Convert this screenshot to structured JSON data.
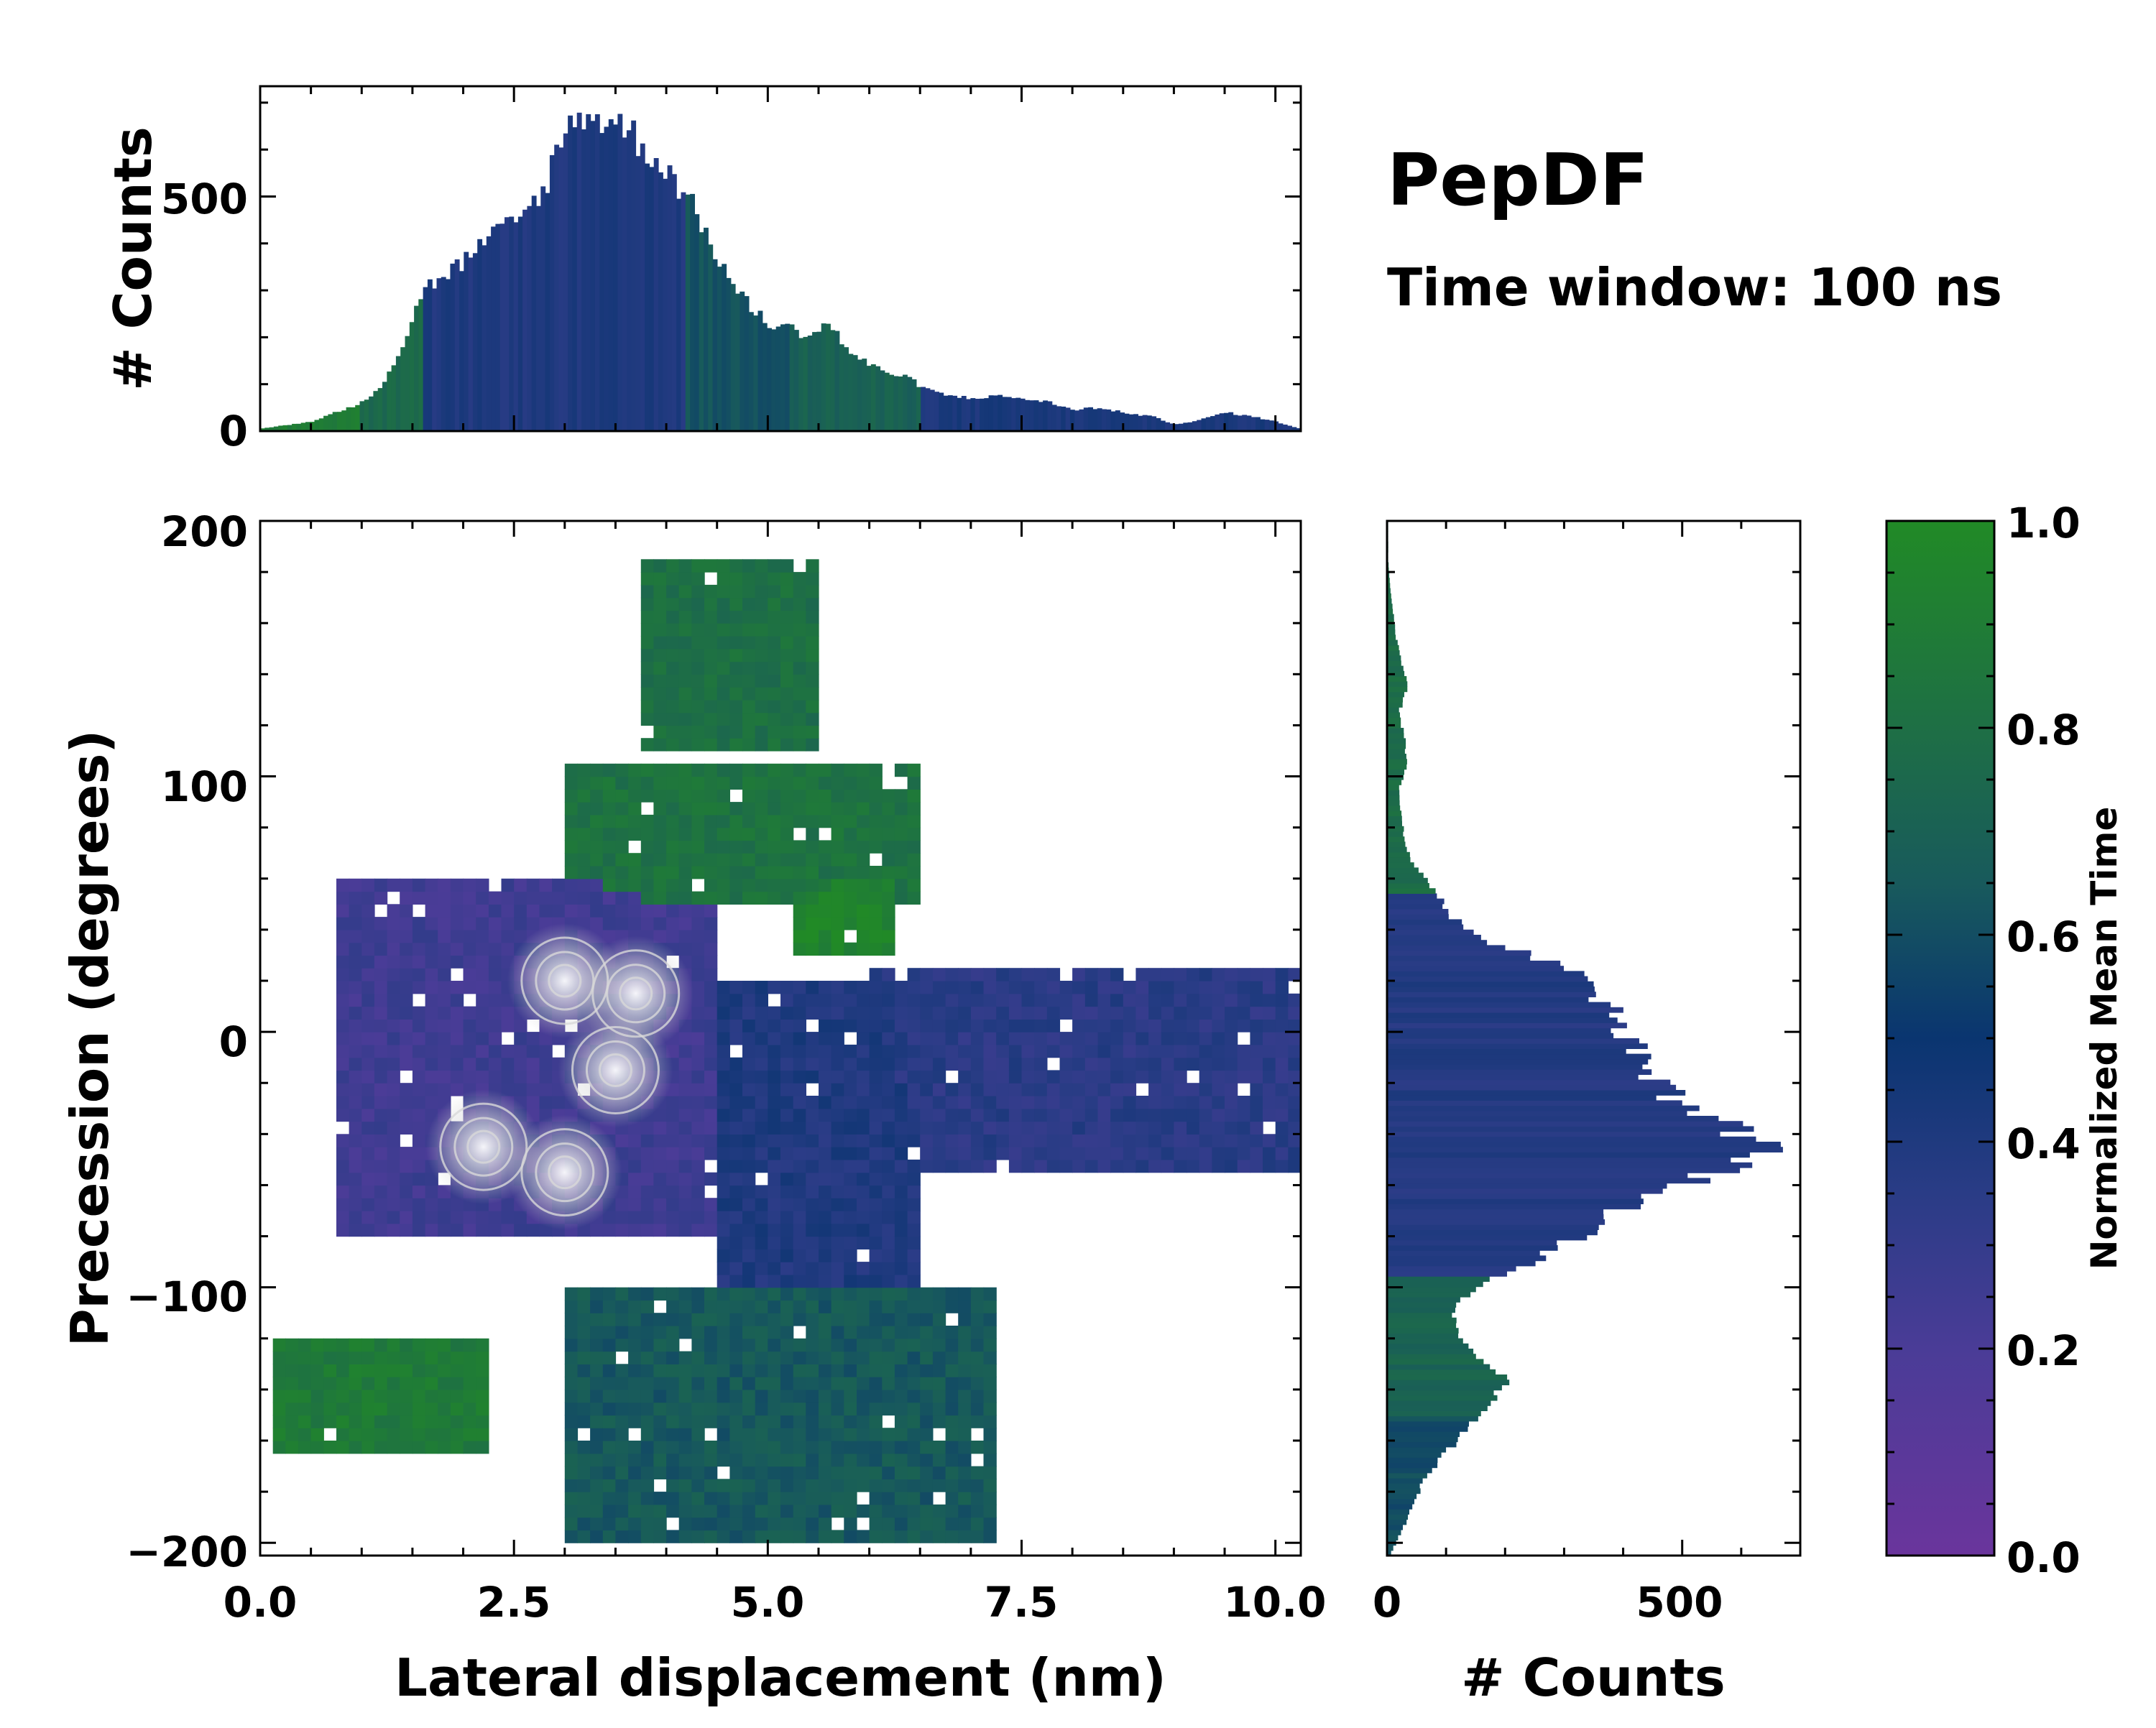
{
  "chart_data": {
    "type": "heatmap",
    "title": "PepDF",
    "subtitle": "Time window: 100 ns",
    "main": {
      "xlabel": "Lateral displacement (nm)",
      "ylabel": "Precession (degrees)",
      "xlim": [
        0.0,
        10.25
      ],
      "ylim": [
        -205,
        200
      ],
      "xticks": [
        "0.0",
        "2.5",
        "5.0",
        "7.5",
        "10.0"
      ],
      "yticks": [
        "200",
        "100",
        "0",
        "−100",
        "−200"
      ],
      "color_metric": "Normalized Mean Time",
      "regions": [
        {
          "name": "upper lobe",
          "x": [
            3.8,
            5.5
          ],
          "y": [
            110,
            185
          ],
          "mean_time": 0.8
        },
        {
          "name": "upper-middle green",
          "x": [
            3.0,
            6.5
          ],
          "y": [
            50,
            105
          ],
          "mean_time": 0.82
        },
        {
          "name": "right green patch",
          "x": [
            5.3,
            6.3
          ],
          "y": [
            30,
            60
          ],
          "mean_time": 0.95
        },
        {
          "name": "left purple core",
          "x": [
            0.8,
            4.5
          ],
          "y": [
            -80,
            60
          ],
          "mean_time": 0.25
        },
        {
          "name": "central blue",
          "x": [
            4.5,
            6.5
          ],
          "y": [
            -100,
            20
          ],
          "mean_time": 0.4
        },
        {
          "name": "right arm",
          "x": [
            6.0,
            10.2
          ],
          "y": [
            -55,
            25
          ],
          "mean_time": 0.35
        },
        {
          "name": "lower-left green",
          "x": [
            0.1,
            2.2
          ],
          "y": [
            -165,
            -120
          ],
          "mean_time": 0.88
        },
        {
          "name": "lower lobe",
          "x": [
            3.0,
            7.2
          ],
          "y": [
            -200,
            -100
          ],
          "mean_time": 0.65
        }
      ],
      "density_peaks": [
        {
          "x": 3.0,
          "y": 20
        },
        {
          "x": 3.7,
          "y": 15
        },
        {
          "x": 3.5,
          "y": -15
        },
        {
          "x": 2.2,
          "y": -45
        },
        {
          "x": 3.0,
          "y": -55
        }
      ]
    },
    "top_histogram": {
      "ylabel": "# Counts",
      "ylim": [
        0,
        735
      ],
      "yticks": [
        "0",
        "500"
      ],
      "x_from": 0.0,
      "x_to": 10.25,
      "envelope_x": [
        0.0,
        0.5,
        1.0,
        1.2,
        1.4,
        1.6,
        1.8,
        2.0,
        2.2,
        2.4,
        2.6,
        2.8,
        3.0,
        3.2,
        3.4,
        3.6,
        3.8,
        4.0,
        4.2,
        4.4,
        4.6,
        4.8,
        5.0,
        5.2,
        5.4,
        5.6,
        5.8,
        6.0,
        6.2,
        6.4,
        6.6,
        6.8,
        7.0,
        7.2,
        7.5,
        7.8,
        8.0,
        8.2,
        8.5,
        8.8,
        9.0,
        9.2,
        9.5,
        9.8,
        10.0,
        10.25
      ],
      "envelope_counts": [
        5,
        20,
        60,
        100,
        180,
        300,
        330,
        360,
        400,
        430,
        460,
        520,
        640,
        680,
        660,
        650,
        600,
        560,
        500,
        420,
        330,
        270,
        230,
        220,
        205,
        230,
        170,
        140,
        125,
        110,
        85,
        75,
        70,
        75,
        70,
        60,
        45,
        50,
        40,
        30,
        15,
        20,
        40,
        30,
        20,
        5
      ]
    },
    "right_histogram": {
      "xlabel": "# Counts",
      "xlim": [
        0,
        700
      ],
      "xticks": [
        "0",
        "500"
      ],
      "y_from": -205,
      "y_to": 200,
      "envelope_y": [
        -205,
        -195,
        -185,
        -175,
        -165,
        -155,
        -145,
        -135,
        -125,
        -115,
        -105,
        -95,
        -85,
        -75,
        -65,
        -55,
        -45,
        -35,
        -25,
        -15,
        -5,
        5,
        15,
        25,
        35,
        45,
        55,
        65,
        75,
        85,
        95,
        105,
        115,
        125,
        135,
        145,
        155,
        165,
        175,
        185
      ],
      "envelope_counts": [
        5,
        25,
        45,
        65,
        100,
        140,
        180,
        200,
        150,
        110,
        120,
        200,
        290,
        360,
        430,
        560,
        650,
        560,
        480,
        440,
        420,
        390,
        360,
        310,
        180,
        110,
        80,
        45,
        30,
        25,
        20,
        35,
        30,
        20,
        35,
        25,
        15,
        10,
        5,
        2
      ]
    },
    "colorbar": {
      "label": "Normalized Mean Time",
      "min": 0.0,
      "max": 1.0,
      "ticks": [
        "0.0",
        "0.2",
        "0.4",
        "0.6",
        "0.8",
        "1.0"
      ],
      "stops": [
        {
          "v": 0.0,
          "color": "#6a359c"
        },
        {
          "v": 0.2,
          "color": "#4a3c97"
        },
        {
          "v": 0.35,
          "color": "#2a3c86"
        },
        {
          "v": 0.5,
          "color": "#0a3570"
        },
        {
          "v": 0.65,
          "color": "#185a5c"
        },
        {
          "v": 0.8,
          "color": "#1e6f45"
        },
        {
          "v": 1.0,
          "color": "#218a26"
        }
      ]
    }
  }
}
